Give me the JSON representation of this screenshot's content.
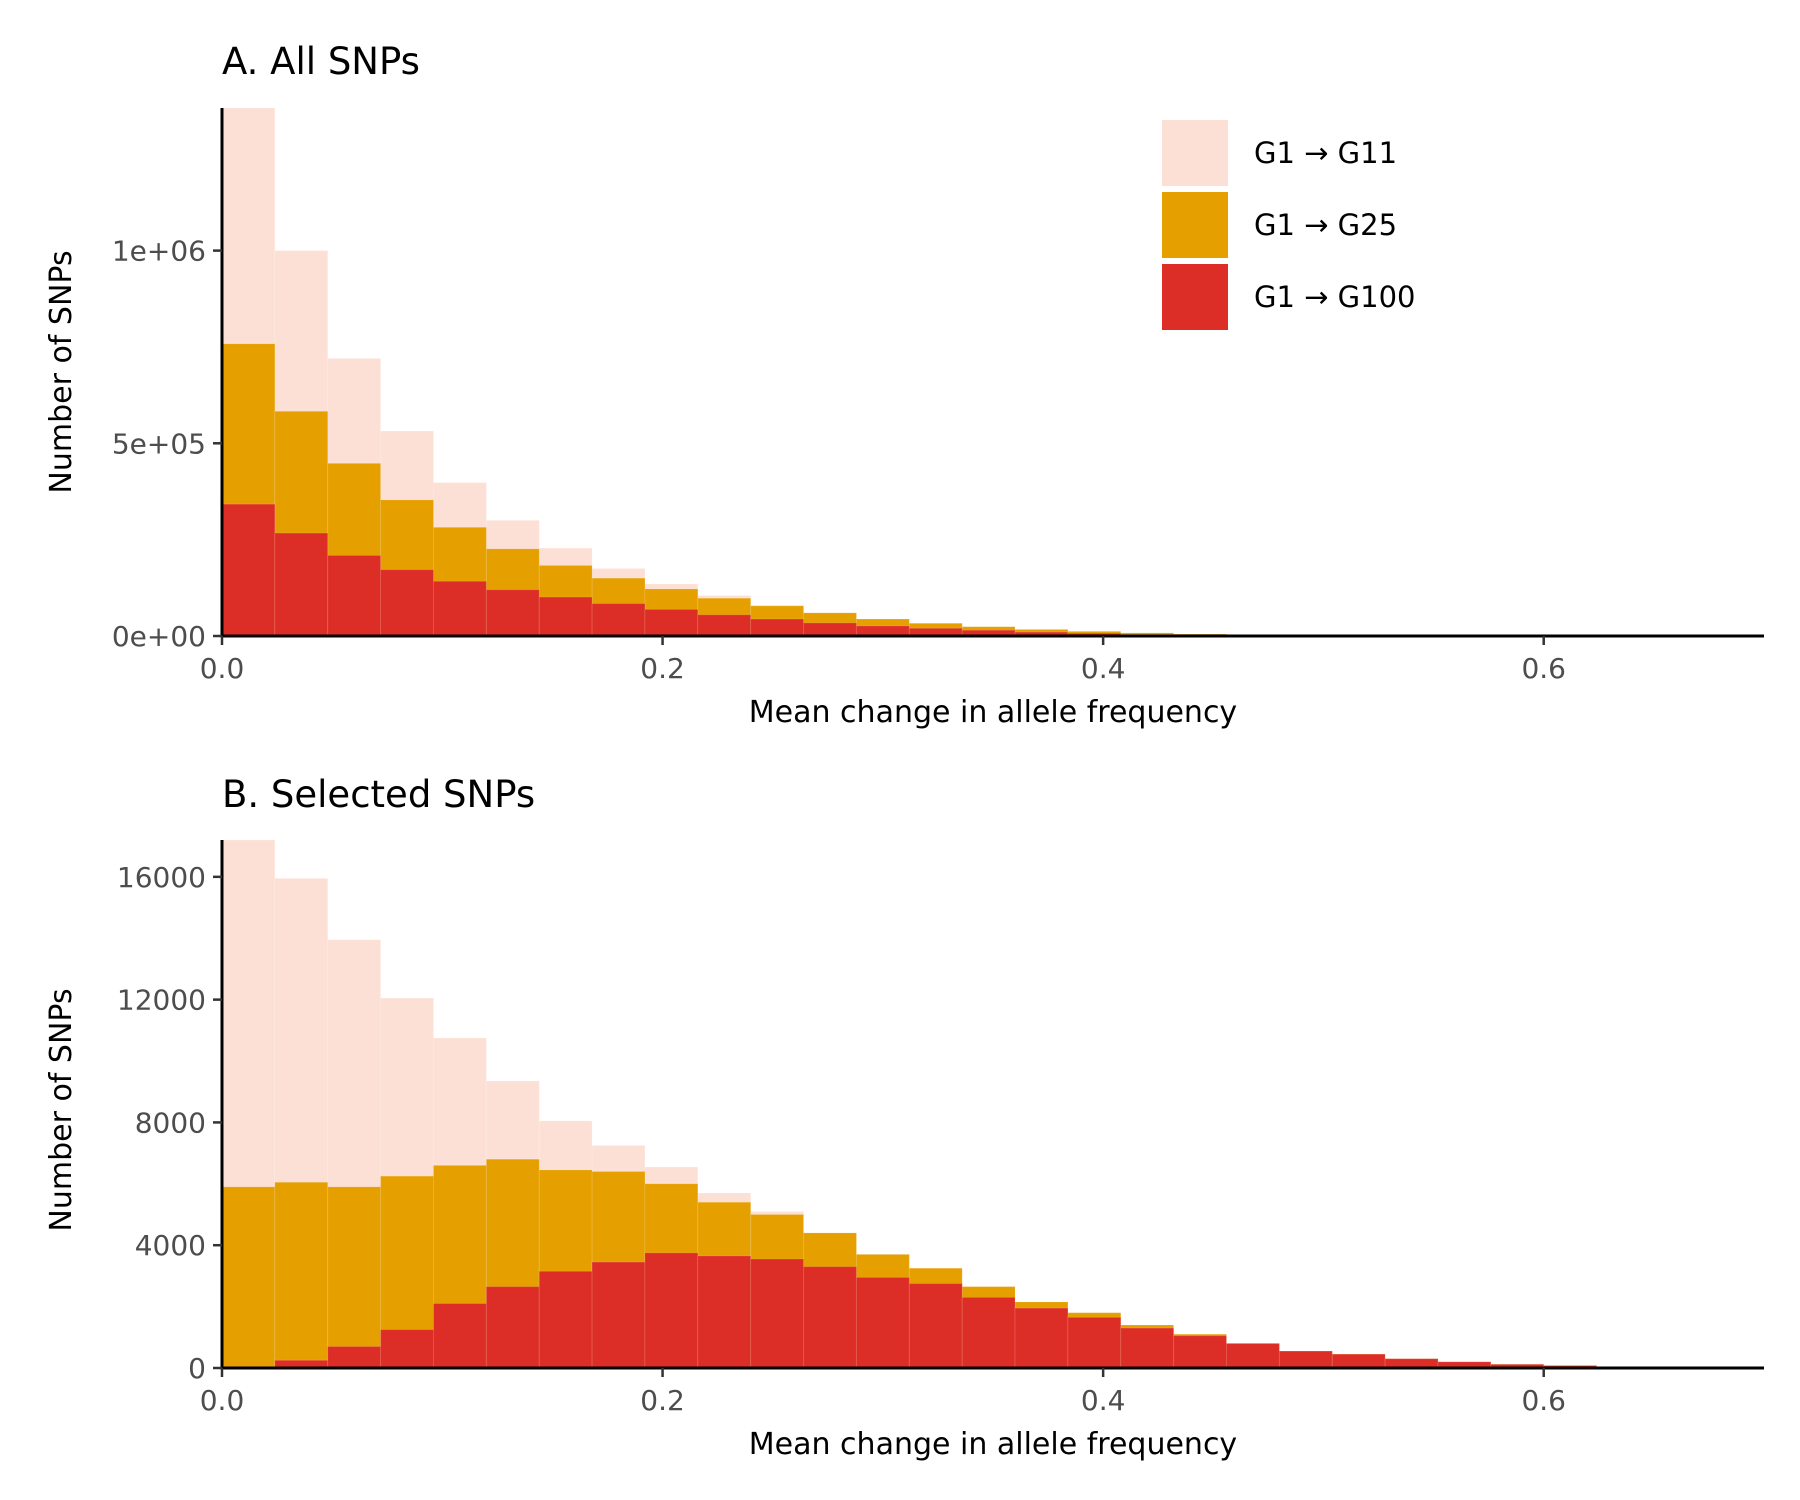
{
  "chart_data": [
    {
      "type": "bar",
      "title": "A. All SNPs",
      "xlabel": "Mean change in allele frequency",
      "ylabel": "Number of SNPs",
      "xlim": [
        0,
        0.7
      ],
      "ylim": [
        0,
        1370000
      ],
      "x_ticks": [
        0,
        0.2,
        0.4,
        0.6
      ],
      "x_tick_labels": [
        "0.0",
        "0.2",
        "0.4",
        "0.6"
      ],
      "y_ticks": [
        0,
        500000,
        1000000
      ],
      "y_tick_labels": [
        "0e+00",
        "5e+05",
        "1e+06"
      ],
      "bin_width": 0.024,
      "grid": false,
      "legend_position": "top-right",
      "bins_left": [
        0,
        0.024,
        0.048,
        0.072,
        0.096,
        0.12,
        0.144,
        0.168,
        0.192,
        0.216,
        0.24,
        0.264,
        0.288,
        0.312,
        0.336,
        0.36,
        0.384,
        0.408,
        0.432,
        0.456,
        0.48,
        0.504,
        0.528,
        0.552,
        0.576,
        0.6,
        0.624,
        0.648,
        0.672
      ],
      "series": [
        {
          "name": "G1 → G11",
          "color": "#fde0d5",
          "values": [
            1370000,
            1000000,
            720000,
            532000,
            398000,
            300000,
            228000,
            175000,
            135000,
            105000,
            80000,
            60000,
            44000,
            32000,
            23000,
            16000,
            11000,
            7000,
            4000,
            2000,
            1000,
            500,
            0,
            0,
            0,
            0,
            0,
            0,
            0
          ]
        },
        {
          "name": "G1 → G25",
          "color": "#e5a000",
          "values": [
            758000,
            583000,
            448000,
            353000,
            282000,
            226000,
            183000,
            150000,
            122000,
            98000,
            78000,
            60000,
            44000,
            33000,
            24000,
            17000,
            12000,
            8000,
            5000,
            2500,
            1000,
            500,
            0,
            0,
            0,
            0,
            0,
            0,
            0
          ]
        },
        {
          "name": "G1 → G100",
          "color": "#dc2e26",
          "values": [
            342000,
            267000,
            209000,
            172000,
            142000,
            120000,
            101000,
            84000,
            69000,
            55000,
            44000,
            34000,
            26000,
            20000,
            15000,
            10000,
            7000,
            4000,
            2000,
            1000,
            500,
            0,
            0,
            0,
            0,
            0,
            0,
            0,
            0
          ]
        }
      ]
    },
    {
      "type": "bar",
      "title": "B. Selected SNPs",
      "xlabel": "Mean change in allele frequency",
      "ylabel": "Number of SNPs",
      "xlim": [
        0,
        0.7
      ],
      "ylim": [
        0,
        17200
      ],
      "x_ticks": [
        0,
        0.2,
        0.4,
        0.6
      ],
      "x_tick_labels": [
        "0.0",
        "0.2",
        "0.4",
        "0.6"
      ],
      "y_ticks": [
        0,
        4000,
        8000,
        12000,
        16000
      ],
      "y_tick_labels": [
        "0",
        "4000",
        "8000",
        "12000",
        "16000"
      ],
      "bin_width": 0.024,
      "grid": false,
      "bins_left": [
        0,
        0.024,
        0.048,
        0.072,
        0.096,
        0.12,
        0.144,
        0.168,
        0.192,
        0.216,
        0.24,
        0.264,
        0.288,
        0.312,
        0.336,
        0.36,
        0.384,
        0.408,
        0.432,
        0.456,
        0.48,
        0.504,
        0.528,
        0.552,
        0.576,
        0.6,
        0.624,
        0.648,
        0.672
      ],
      "series": [
        {
          "name": "G1 → G11",
          "color": "#fde0d5",
          "values": [
            17200,
            15950,
            13950,
            12050,
            10750,
            9350,
            8050,
            7250,
            6550,
            5700,
            5100,
            4400,
            3700,
            3250,
            2650,
            2150,
            1800,
            1350,
            1100,
            800,
            550,
            450,
            300,
            200,
            120,
            80,
            40,
            20,
            10
          ]
        },
        {
          "name": "G1 → G25",
          "color": "#e5a000",
          "values": [
            5900,
            6050,
            5900,
            6250,
            6600,
            6800,
            6450,
            6400,
            6000,
            5400,
            5000,
            4400,
            3700,
            3250,
            2650,
            2150,
            1800,
            1400,
            1100,
            800,
            550,
            450,
            300,
            200,
            120,
            80,
            40,
            20,
            10
          ]
        },
        {
          "name": "G1 → G100",
          "color": "#dc2e26",
          "values": [
            0,
            250,
            700,
            1250,
            2100,
            2650,
            3150,
            3450,
            3750,
            3650,
            3550,
            3300,
            2950,
            2750,
            2300,
            1950,
            1650,
            1300,
            1050,
            800,
            550,
            450,
            300,
            200,
            120,
            80,
            40,
            20,
            10
          ]
        }
      ]
    }
  ]
}
